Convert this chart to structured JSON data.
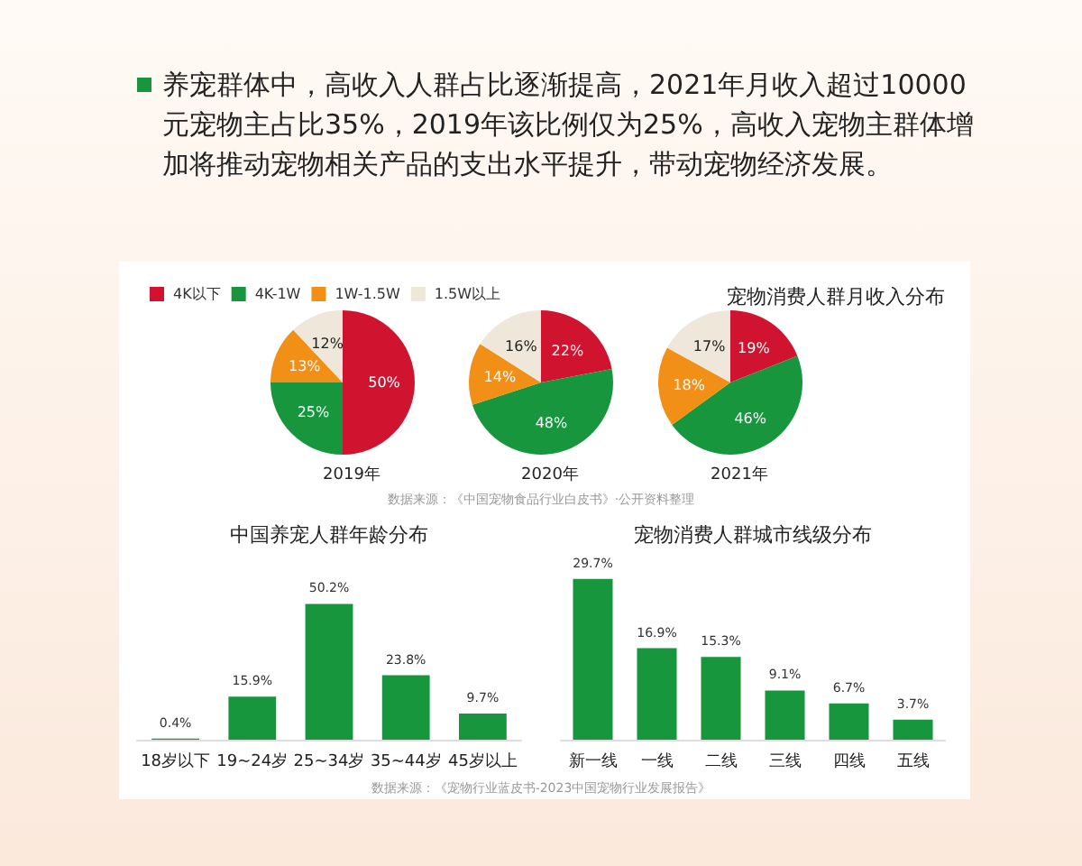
{
  "chart_data": [
    {
      "type": "other",
      "annotations": [
        "养宠群体中，高收入人群占比逐渐提高，2021年月收入超过10000元宠物主占比35%，2019年该比例仅为25%，高收入宠物主群体增加将推动宠物相关产品的支出水平提升，带动宠物经济发展。"
      ]
    },
    {
      "type": "pie",
      "title": "宠物消费人群月收入分布",
      "categories": [
        "4K以下",
        "4K-1W",
        "1W-1.5W",
        "1.5W以上"
      ],
      "colors": [
        "#d0142f",
        "#17963e",
        "#f28f16",
        "#eee7da"
      ],
      "legend": "top left",
      "series": [
        {
          "name": "2019年",
          "values": [
            50,
            25,
            13,
            12
          ],
          "value_labels": [
            "50%",
            "25%",
            "13%",
            "12%"
          ]
        },
        {
          "name": "2020年",
          "values": [
            22,
            48,
            14,
            16
          ],
          "value_labels": [
            "22%",
            "48%",
            "14%",
            "16%"
          ]
        },
        {
          "name": "2021年",
          "values": [
            19,
            46,
            18,
            17
          ],
          "value_labels": [
            "19%",
            "46%",
            "18%",
            "17%"
          ]
        }
      ],
      "annotations": [
        "数据来源：《中国宠物食品行业白皮书》·公开资料整理"
      ]
    },
    {
      "type": "bar",
      "title": "中国养宠人群年龄分布",
      "categories": [
        "18岁以下",
        "19~24岁",
        "25~34岁",
        "35~44岁",
        "45岁以上"
      ],
      "values": [
        0.4,
        15.9,
        50.2,
        23.8,
        9.7
      ],
      "color": "#17963e",
      "value_labels": [
        "0.4%",
        "15.9%",
        "50.2%",
        "23.8%",
        "9.7%"
      ]
    },
    {
      "type": "bar",
      "title": "宠物消费人群城市线级分布",
      "categories": [
        "新一线",
        "一线",
        "二线",
        "三线",
        "四线",
        "五线"
      ],
      "values": [
        29.7,
        16.9,
        15.3,
        9.1,
        6.7,
        3.7
      ],
      "color": "#17963e",
      "value_labels": [
        "29.7%",
        "16.9%",
        "15.3%",
        "9.1%",
        "6.7%",
        "3.7%"
      ],
      "annotations": [
        "数据来源：《宠物行业蓝皮书-2023中国宠物行业发展报告》"
      ]
    }
  ]
}
